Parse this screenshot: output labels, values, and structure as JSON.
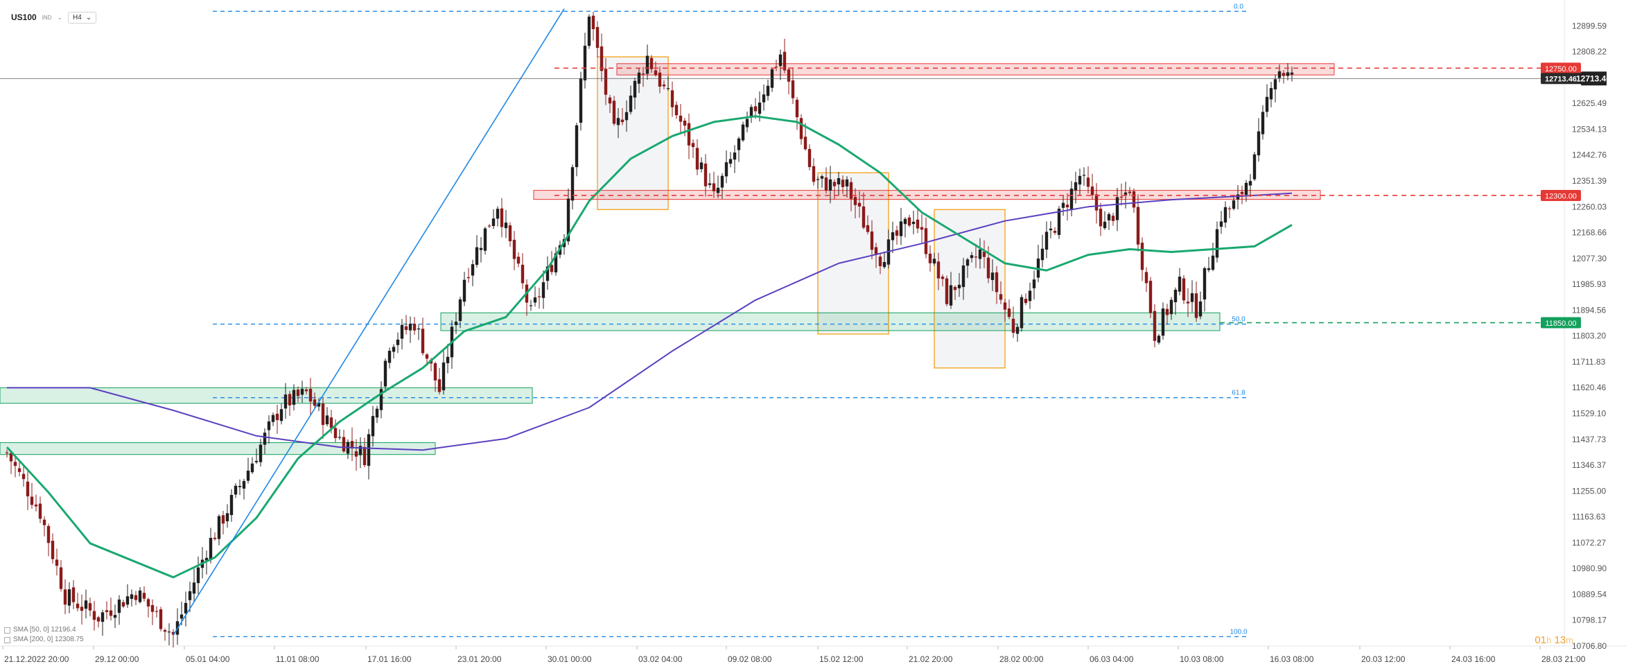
{
  "header": {
    "symbol": "US100",
    "symbol_tag": "IND",
    "timeframe": "H4"
  },
  "legend": [
    {
      "label": "SMA [50, 0] 12196.4"
    },
    {
      "label": "SMA [200, 0] 12308.75"
    }
  ],
  "timer": {
    "h": "01",
    "h_unit": "h",
    "m": "13",
    "m_unit": "m"
  },
  "colors": {
    "bull": "#1f1f1f",
    "bear": "#8b1a1a",
    "sma50": "#1aa870",
    "sma200": "#5b3fbf",
    "fib": "#1e88e5",
    "resistance": "#e53935",
    "support": "#12a05c",
    "box": "#f5a623",
    "current": "#222222"
  },
  "chart_data": {
    "type": "candlestick",
    "symbol": "US100",
    "interval": "H4",
    "ylim": [
      10706.8,
      12991.0
    ],
    "y_ticks": [
      12899.59,
      12808.22,
      12625.49,
      12534.13,
      12442.76,
      12351.39,
      12260.03,
      12168.66,
      12077.3,
      11985.93,
      11894.56,
      11803.2,
      11711.83,
      11620.46,
      11529.1,
      11437.73,
      11346.37,
      11255.0,
      11163.63,
      11072.27,
      10980.9,
      10889.54,
      10798.17,
      10706.8
    ],
    "x_ticks": [
      "21.12.2022  20:00",
      "29.12  00:00",
      "05.01  04:00",
      "11.01  08:00",
      "17.01  16:00",
      "23.01  20:00",
      "30.01  00:00",
      "03.02  04:00",
      "09.02  08:00",
      "15.02  12:00",
      "21.02  20:00",
      "28.02  00:00",
      "06.03  04:00",
      "10.03  08:00",
      "16.03  08:00",
      "20.03  12:00",
      "24.03  16:00",
      "28.03  21:00"
    ],
    "price_labels": [
      {
        "value": "12750.00",
        "kind": "resistance"
      },
      {
        "value": "12713.46",
        "kind": "current"
      },
      {
        "value": "12300.00",
        "kind": "resistance"
      },
      {
        "value": "11850.00",
        "kind": "support"
      }
    ],
    "fib_levels": [
      {
        "label": "0.0",
        "value": 12951
      },
      {
        "label": "50.0",
        "value": 11845
      },
      {
        "label": "61.8",
        "value": 11585
      },
      {
        "label": "100.0",
        "value": 10740
      }
    ],
    "zones": [
      {
        "kind": "resistance",
        "from": 12726,
        "to": 12766
      },
      {
        "kind": "resistance",
        "from": 12286,
        "to": 12318
      },
      {
        "kind": "support",
        "from": 11822,
        "to": 11885
      },
      {
        "kind": "support",
        "from": 11565,
        "to": 11620
      },
      {
        "kind": "support",
        "from": 11384,
        "to": 11426
      }
    ],
    "anchors": [
      {
        "bar": 0,
        "price": 11390
      },
      {
        "bar": 8,
        "price": 11180
      },
      {
        "bar": 14,
        "price": 10885
      },
      {
        "bar": 22,
        "price": 10810
      },
      {
        "bar": 31,
        "price": 10900
      },
      {
        "bar": 40,
        "price": 10745
      },
      {
        "bar": 48,
        "price": 11050
      },
      {
        "bar": 58,
        "price": 11330
      },
      {
        "bar": 66,
        "price": 11560
      },
      {
        "bar": 72,
        "price": 11600
      },
      {
        "bar": 80,
        "price": 11440
      },
      {
        "bar": 86,
        "price": 11380
      },
      {
        "bar": 92,
        "price": 11780
      },
      {
        "bar": 98,
        "price": 11850
      },
      {
        "bar": 104,
        "price": 11610
      },
      {
        "bar": 110,
        "price": 12010
      },
      {
        "bar": 118,
        "price": 12270
      },
      {
        "bar": 126,
        "price": 11880
      },
      {
        "bar": 134,
        "price": 12170
      },
      {
        "bar": 140,
        "price": 12950
      },
      {
        "bar": 146,
        "price": 12520
      },
      {
        "bar": 154,
        "price": 12790
      },
      {
        "bar": 162,
        "price": 12560
      },
      {
        "bar": 170,
        "price": 12290
      },
      {
        "bar": 178,
        "price": 12550
      },
      {
        "bar": 186,
        "price": 12800
      },
      {
        "bar": 194,
        "price": 12350
      },
      {
        "bar": 202,
        "price": 12330
      },
      {
        "bar": 210,
        "price": 12080
      },
      {
        "bar": 218,
        "price": 12230
      },
      {
        "bar": 226,
        "price": 11940
      },
      {
        "bar": 234,
        "price": 12100
      },
      {
        "bar": 242,
        "price": 11830
      },
      {
        "bar": 250,
        "price": 12140
      },
      {
        "bar": 258,
        "price": 12370
      },
      {
        "bar": 264,
        "price": 12190
      },
      {
        "bar": 270,
        "price": 12330
      },
      {
        "bar": 276,
        "price": 11810
      },
      {
        "bar": 282,
        "price": 11980
      },
      {
        "bar": 286,
        "price": 11900
      },
      {
        "bar": 292,
        "price": 12230
      },
      {
        "bar": 296,
        "price": 12280
      },
      {
        "bar": 300,
        "price": 12420
      },
      {
        "bar": 304,
        "price": 12710
      },
      {
        "bar": 306,
        "price": 12745
      },
      {
        "bar": 309,
        "price": 12713
      }
    ],
    "sma50": [
      {
        "bar": 0,
        "price": 11410
      },
      {
        "bar": 10,
        "price": 11250
      },
      {
        "bar": 20,
        "price": 11070
      },
      {
        "bar": 30,
        "price": 11010
      },
      {
        "bar": 40,
        "price": 10950
      },
      {
        "bar": 50,
        "price": 11020
      },
      {
        "bar": 60,
        "price": 11160
      },
      {
        "bar": 70,
        "price": 11370
      },
      {
        "bar": 80,
        "price": 11500
      },
      {
        "bar": 90,
        "price": 11600
      },
      {
        "bar": 100,
        "price": 11690
      },
      {
        "bar": 110,
        "price": 11820
      },
      {
        "bar": 120,
        "price": 11870
      },
      {
        "bar": 130,
        "price": 12040
      },
      {
        "bar": 140,
        "price": 12280
      },
      {
        "bar": 150,
        "price": 12430
      },
      {
        "bar": 160,
        "price": 12510
      },
      {
        "bar": 170,
        "price": 12560
      },
      {
        "bar": 180,
        "price": 12580
      },
      {
        "bar": 190,
        "price": 12560
      },
      {
        "bar": 200,
        "price": 12480
      },
      {
        "bar": 210,
        "price": 12380
      },
      {
        "bar": 220,
        "price": 12240
      },
      {
        "bar": 230,
        "price": 12150
      },
      {
        "bar": 240,
        "price": 12060
      },
      {
        "bar": 250,
        "price": 12035
      },
      {
        "bar": 260,
        "price": 12090
      },
      {
        "bar": 270,
        "price": 12110
      },
      {
        "bar": 280,
        "price": 12100
      },
      {
        "bar": 290,
        "price": 12110
      },
      {
        "bar": 300,
        "price": 12120
      },
      {
        "bar": 309,
        "price": 12196
      }
    ],
    "sma200": [
      {
        "bar": 0,
        "price": 11620
      },
      {
        "bar": 20,
        "price": 11620
      },
      {
        "bar": 40,
        "price": 11540
      },
      {
        "bar": 60,
        "price": 11450
      },
      {
        "bar": 80,
        "price": 11410
      },
      {
        "bar": 100,
        "price": 11400
      },
      {
        "bar": 120,
        "price": 11440
      },
      {
        "bar": 140,
        "price": 11550
      },
      {
        "bar": 160,
        "price": 11750
      },
      {
        "bar": 180,
        "price": 11930
      },
      {
        "bar": 200,
        "price": 12060
      },
      {
        "bar": 220,
        "price": 12130
      },
      {
        "bar": 240,
        "price": 12210
      },
      {
        "bar": 260,
        "price": 12260
      },
      {
        "bar": 280,
        "price": 12285
      },
      {
        "bar": 300,
        "price": 12300
      },
      {
        "bar": 309,
        "price": 12308
      }
    ],
    "trendline": {
      "from": {
        "bar": 40,
        "price": 10745
      },
      "to": {
        "bar": 134,
        "price": 12960
      }
    },
    "pattern_boxes": [
      {
        "from_bar": 142,
        "to_bar": 159,
        "top": 12790,
        "bottom": 12250
      },
      {
        "from_bar": 195,
        "to_bar": 212,
        "top": 12380,
        "bottom": 11810
      },
      {
        "from_bar": 223,
        "to_bar": 240,
        "top": 12250,
        "bottom": 11690
      }
    ],
    "last_price": 12713.46
  }
}
